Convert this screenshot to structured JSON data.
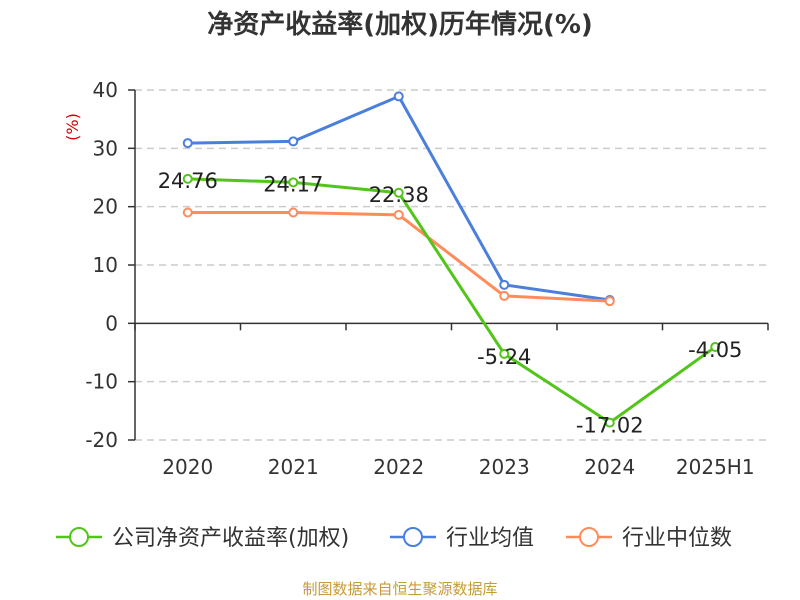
{
  "chart_data": {
    "type": "line",
    "title": "净资产收益率(加权)历年情况(%)",
    "ylabel": "(%)",
    "xlabel": "",
    "categories": [
      "2020",
      "2021",
      "2022",
      "2023",
      "2024",
      "2025H1"
    ],
    "ylim": [
      -20,
      40
    ],
    "yticks": [
      40,
      30,
      20,
      10,
      0,
      -10,
      -20
    ],
    "grid": true,
    "legend_position": "bottom",
    "series": [
      {
        "name": "公司净资产收益率(加权)",
        "color": "#52c41a",
        "values": [
          24.76,
          24.17,
          22.38,
          -5.24,
          -17.02,
          -4.05
        ],
        "labels": [
          "24.76",
          "24.17",
          "22.38",
          "-5.24",
          "-17.02",
          "-4.05"
        ],
        "show_labels": true
      },
      {
        "name": "行业均值",
        "color": "#4a7fdc",
        "values": [
          30.9,
          31.2,
          38.9,
          6.6,
          4.0,
          null
        ],
        "show_labels": false
      },
      {
        "name": "行业中位数",
        "color": "#ff8c5a",
        "values": [
          19.0,
          19.0,
          18.6,
          4.7,
          3.8,
          null
        ],
        "show_labels": false
      }
    ]
  },
  "source_note": "制图数据来自恒生聚源数据库"
}
